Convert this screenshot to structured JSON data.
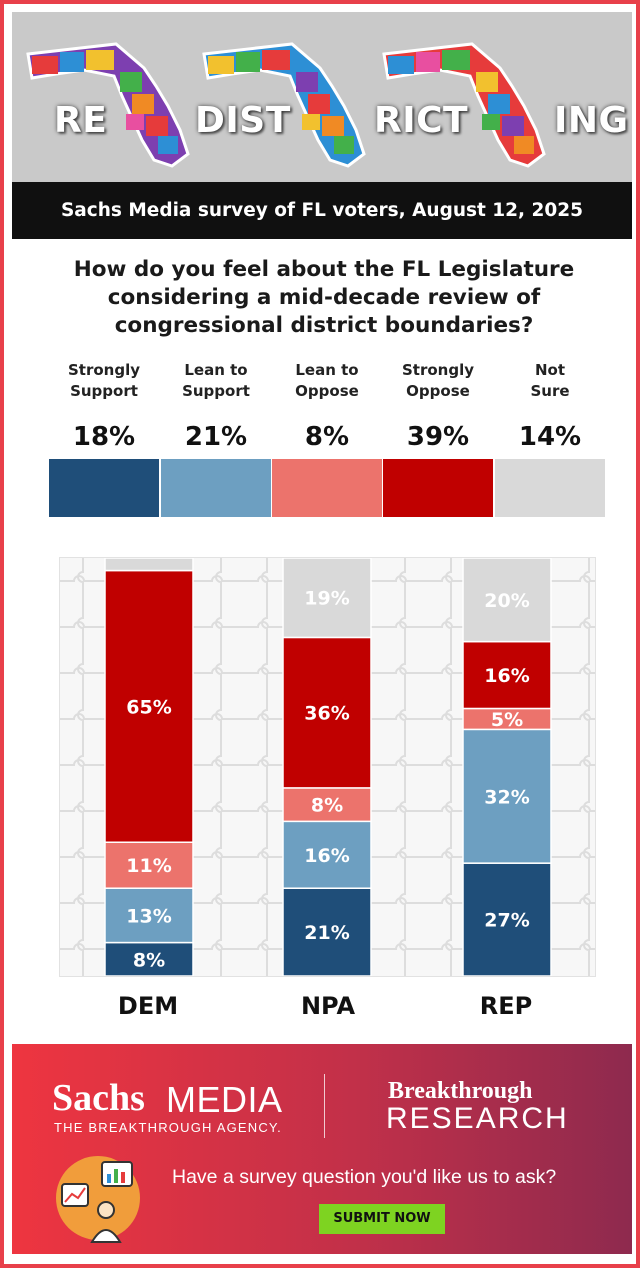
{
  "banner": {
    "words": [
      "RE",
      "DIST",
      "RICT",
      "ING"
    ],
    "subtitle": "Sachs Media survey of FL voters, August 12, 2025"
  },
  "question": "How do you feel about the FL Legislature considering a mid-decade review of congressional district boundaries?",
  "colors": {
    "strongly_support": "#1f4e79",
    "lean_support": "#6d9fc1",
    "lean_oppose": "#ec736c",
    "strongly_oppose": "#c00000",
    "not_sure": "#d9d9d9"
  },
  "chart_data": [
    {
      "type": "bar",
      "categories": [
        "Strongly Support",
        "Lean to Support",
        "Lean to Oppose",
        "Strongly Oppose",
        "Not Sure"
      ],
      "values": [
        18,
        21,
        8,
        39,
        14
      ],
      "value_labels": [
        "18%",
        "21%",
        "8%",
        "39%",
        "14%"
      ],
      "category_lines": [
        [
          "Strongly",
          "Support"
        ],
        [
          "Lean to",
          "Support"
        ],
        [
          "Lean to",
          "Oppose"
        ],
        [
          "Strongly",
          "Oppose"
        ],
        [
          "Not",
          "Sure"
        ]
      ],
      "unit": "%"
    },
    {
      "type": "bar",
      "stacked": true,
      "categories": [
        "DEM",
        "NPA",
        "REP"
      ],
      "ylim": [
        0,
        100
      ],
      "series": [
        {
          "name": "Strongly Support",
          "key": "strongly_support",
          "values": [
            8,
            21,
            27
          ]
        },
        {
          "name": "Lean to Support",
          "key": "lean_support",
          "values": [
            13,
            16,
            32
          ]
        },
        {
          "name": "Lean to Oppose",
          "key": "lean_oppose",
          "values": [
            11,
            8,
            5
          ]
        },
        {
          "name": "Strongly Oppose",
          "key": "strongly_oppose",
          "values": [
            65,
            36,
            16
          ]
        },
        {
          "name": "Not Sure",
          "key": "not_sure",
          "values": [
            3,
            19,
            20
          ]
        }
      ],
      "labels": [
        [
          "8%",
          "13%",
          "11%",
          "65%",
          ""
        ],
        [
          "21%",
          "16%",
          "8%",
          "36%",
          "19%"
        ],
        [
          "27%",
          "32%",
          "5%",
          "16%",
          "20%"
        ]
      ]
    }
  ],
  "footer": {
    "logo_sachs": "Sachs",
    "logo_media": "MEDIA",
    "tagline": "THE BREAKTHROUGH AGENCY.",
    "brand2_line1": "Breakthrough",
    "brand2_line2": "RESEARCH",
    "ask": "Have a survey question you'd like us to ask?",
    "submit_label": "SUBMIT NOW"
  }
}
